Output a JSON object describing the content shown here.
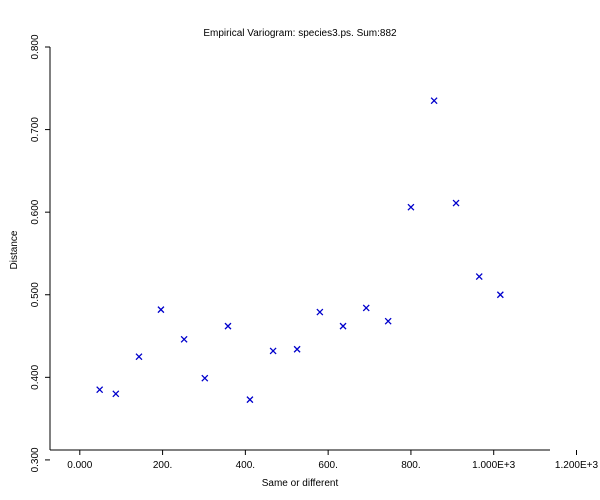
{
  "chart_data": {
    "type": "scatter",
    "title": "Empirical Variogram: species3.ps. Sum:882",
    "xlabel": "Same or different",
    "ylabel": "Distance",
    "color": "#0000cc",
    "x": [
      48,
      87,
      143,
      196,
      252,
      302,
      358,
      411,
      467,
      525,
      580,
      636,
      692,
      745,
      800,
      856,
      909,
      965,
      1016
    ],
    "values": [
      0.385,
      0.38,
      0.425,
      0.482,
      0.446,
      0.399,
      0.462,
      0.373,
      0.432,
      0.434,
      0.479,
      0.462,
      0.484,
      0.468,
      0.606,
      0.735,
      0.611,
      0.522,
      0.5
    ],
    "xlim": [
      -72,
      1136
    ],
    "ylim": [
      0.312,
      0.8
    ],
    "xticks": [
      {
        "value": 0,
        "label": "0.000"
      },
      {
        "value": 200,
        "label": "200."
      },
      {
        "value": 400,
        "label": "400."
      },
      {
        "value": 600,
        "label": "600."
      },
      {
        "value": 800,
        "label": "800."
      },
      {
        "value": 1000,
        "label": "1.000E+3"
      },
      {
        "value": 1200,
        "label": "1.200E+3"
      }
    ],
    "yticks": [
      {
        "value": 0.3,
        "label": "0.300"
      },
      {
        "value": 0.4,
        "label": "0.400"
      },
      {
        "value": 0.5,
        "label": "0.500"
      },
      {
        "value": 0.6,
        "label": "0.600"
      },
      {
        "value": 0.7,
        "label": "0.700"
      },
      {
        "value": 0.8,
        "label": "0.800"
      }
    ]
  }
}
